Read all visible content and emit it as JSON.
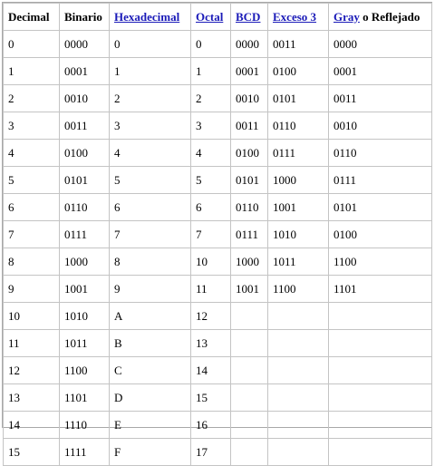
{
  "headers": {
    "decimal": "Decimal",
    "binario": "Binario",
    "hexadecimal": "Hexadecimal",
    "octal": "Octal",
    "bcd": "BCD",
    "exceso3": "Exceso 3",
    "gray": "Gray",
    "gray_suffix": " o Reflejado"
  },
  "rows": [
    {
      "decimal": "0",
      "binario": "0000",
      "hexadecimal": "0",
      "octal": "0",
      "bcd": "0000",
      "exceso3": "0011",
      "gray": "0000"
    },
    {
      "decimal": "1",
      "binario": "0001",
      "hexadecimal": "1",
      "octal": "1",
      "bcd": "0001",
      "exceso3": "0100",
      "gray": "0001"
    },
    {
      "decimal": "2",
      "binario": "0010",
      "hexadecimal": "2",
      "octal": "2",
      "bcd": "0010",
      "exceso3": "0101",
      "gray": "0011"
    },
    {
      "decimal": "3",
      "binario": "0011",
      "hexadecimal": "3",
      "octal": "3",
      "bcd": "0011",
      "exceso3": "0110",
      "gray": "0010"
    },
    {
      "decimal": "4",
      "binario": "0100",
      "hexadecimal": "4",
      "octal": "4",
      "bcd": "0100",
      "exceso3": "0111",
      "gray": "0110"
    },
    {
      "decimal": "5",
      "binario": "0101",
      "hexadecimal": "5",
      "octal": "5",
      "bcd": "0101",
      "exceso3": "1000",
      "gray": "0111"
    },
    {
      "decimal": "6",
      "binario": "0110",
      "hexadecimal": "6",
      "octal": "6",
      "bcd": "0110",
      "exceso3": "1001",
      "gray": "0101"
    },
    {
      "decimal": "7",
      "binario": "0111",
      "hexadecimal": "7",
      "octal": "7",
      "bcd": "0111",
      "exceso3": "1010",
      "gray": "0100"
    },
    {
      "decimal": "8",
      "binario": "1000",
      "hexadecimal": "8",
      "octal": "10",
      "bcd": "1000",
      "exceso3": "1011",
      "gray": "1100"
    },
    {
      "decimal": "9",
      "binario": "1001",
      "hexadecimal": "9",
      "octal": "11",
      "bcd": "1001",
      "exceso3": "1100",
      "gray": "1101"
    },
    {
      "decimal": "10",
      "binario": "1010",
      "hexadecimal": "A",
      "octal": "12",
      "bcd": "",
      "exceso3": "",
      "gray": ""
    },
    {
      "decimal": "11",
      "binario": "1011",
      "hexadecimal": "B",
      "octal": "13",
      "bcd": "",
      "exceso3": "",
      "gray": ""
    },
    {
      "decimal": "12",
      "binario": "1100",
      "hexadecimal": "C",
      "octal": "14",
      "bcd": "",
      "exceso3": "",
      "gray": ""
    },
    {
      "decimal": "13",
      "binario": "1101",
      "hexadecimal": "D",
      "octal": "15",
      "bcd": "",
      "exceso3": "",
      "gray": ""
    },
    {
      "decimal": "14",
      "binario": "1110",
      "hexadecimal": "E",
      "octal": "16",
      "bcd": "",
      "exceso3": "",
      "gray": ""
    },
    {
      "decimal": "15",
      "binario": "1111",
      "hexadecimal": "F",
      "octal": "17",
      "bcd": "",
      "exceso3": "",
      "gray": ""
    }
  ],
  "colors": {
    "link": "#1a1ab8",
    "grid": "#c4c4c4",
    "frame": "#a8a8a8"
  }
}
